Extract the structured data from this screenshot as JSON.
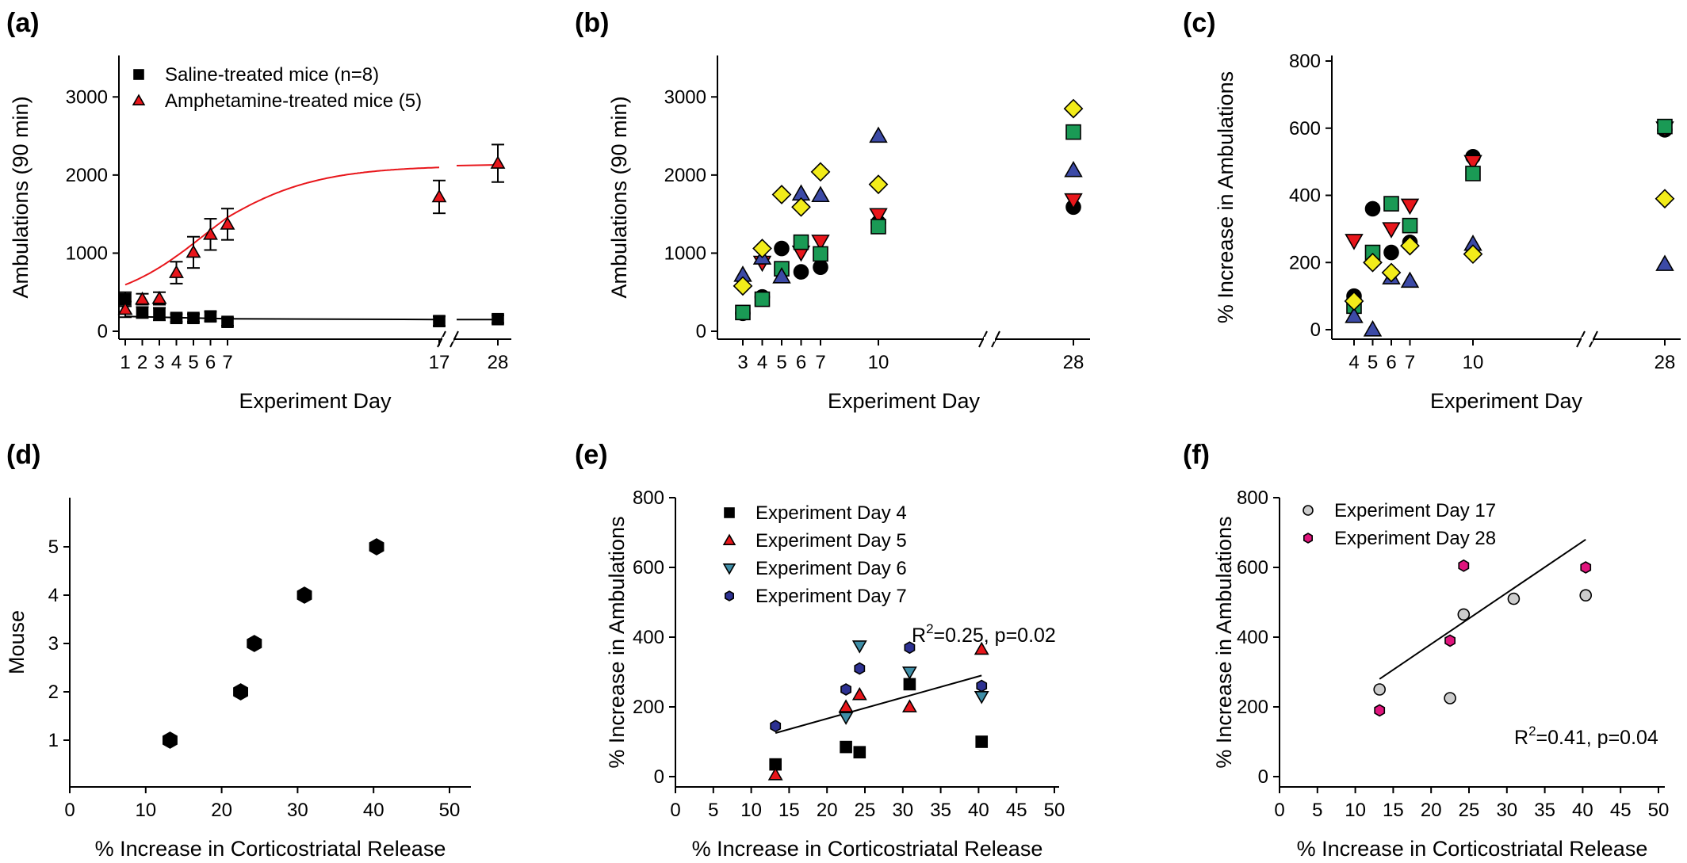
{
  "colors": {
    "black": "#000000",
    "red": "#e8161b",
    "teal": "#3e8da6",
    "navy": "#2d3192",
    "yellow": "#f2ec1a",
    "green": "#1a9a55",
    "blue_triangle": "#3c4aa6",
    "pink": "#e0157d",
    "gray": "#cccccc"
  },
  "chart_data": [
    {
      "id": "a",
      "panel_label": "(a)",
      "type": "line",
      "xlabel": "Experiment Day",
      "ylabel": "Ambulations (90 min)",
      "yticks": [
        0,
        1000,
        2000,
        3000
      ],
      "ylim": [
        0,
        3500
      ],
      "xticks": [
        "1",
        "2",
        "3",
        "4",
        "5",
        "6",
        "7",
        "17",
        "28"
      ],
      "axis_break": "between 17 and 28",
      "legend_position": "top-left",
      "series": [
        {
          "name": "Saline-treated mice (n=8)",
          "marker": "square",
          "color": "#000000",
          "x": [
            1,
            2,
            3,
            4,
            5,
            6,
            7,
            17,
            28
          ],
          "y": [
            410,
            240,
            220,
            170,
            170,
            190,
            120,
            130,
            155
          ],
          "err": [
            90,
            70,
            80,
            50,
            50,
            60,
            50,
            60,
            50
          ],
          "fit": {
            "type": "flat",
            "y": 150
          }
        },
        {
          "name": "Amphetamine-treated mice (5)",
          "marker": "triangle",
          "color": "#e8161b",
          "x": [
            1,
            2,
            3,
            4,
            5,
            6,
            7,
            17,
            28
          ],
          "y": [
            280,
            410,
            420,
            750,
            1010,
            1240,
            1370,
            1720,
            2150
          ],
          "err": [
            100,
            70,
            80,
            140,
            200,
            200,
            200,
            210,
            240
          ],
          "fit": {
            "type": "sigmoid",
            "base": 330,
            "top": 2120,
            "half_day": 5.6,
            "slope": 0.38
          }
        }
      ]
    },
    {
      "id": "b",
      "panel_label": "(b)",
      "type": "scatter",
      "xlabel": "Experiment Day",
      "ylabel": "Ambulations (90 min)",
      "yticks": [
        0,
        1000,
        2000,
        3000
      ],
      "ylim": [
        0,
        3500
      ],
      "xticks": [
        "3",
        "4",
        "5",
        "6",
        "7",
        "10",
        "28"
      ],
      "axis_break": "between 10 and 28",
      "series": [
        {
          "marker": "circle",
          "color": "#000000",
          "x": [
            3,
            4,
            5,
            6,
            7,
            10,
            28
          ],
          "y": [
            230,
            440,
            1060,
            760,
            820,
            1390,
            1590
          ]
        },
        {
          "marker": "triangle-down",
          "color": "#e8161b",
          "x": [
            4,
            6,
            7,
            10,
            28
          ],
          "y": [
            880,
            1010,
            1150,
            1490,
            1680
          ]
        },
        {
          "marker": "square",
          "color": "#1a9a55",
          "x": [
            3,
            4,
            5,
            6,
            7,
            10,
            28
          ],
          "y": [
            240,
            410,
            800,
            1140,
            990,
            1340,
            2550
          ]
        },
        {
          "marker": "triangle",
          "color": "#3c4aa6",
          "x": [
            3,
            4,
            5,
            6,
            7,
            10,
            28
          ],
          "y": [
            720,
            940,
            700,
            1760,
            1740,
            2500,
            2060
          ]
        },
        {
          "marker": "diamond",
          "color": "#f2ec1a",
          "x": [
            3,
            4,
            5,
            6,
            7,
            10,
            28
          ],
          "y": [
            580,
            1060,
            1750,
            1590,
            2040,
            1880,
            2850
          ]
        }
      ]
    },
    {
      "id": "c",
      "panel_label": "(c)",
      "type": "scatter",
      "xlabel": "Experiment Day",
      "ylabel": "% Increase in Ambulations",
      "yticks": [
        0,
        200,
        400,
        600,
        800
      ],
      "ylim": [
        0,
        800
      ],
      "xticks": [
        "4",
        "5",
        "6",
        "7",
        "10",
        "28"
      ],
      "axis_break": "between 10 and 28",
      "series": [
        {
          "marker": "circle",
          "color": "#000000",
          "x": [
            4,
            5,
            6,
            7,
            10,
            28
          ],
          "y": [
            100,
            360,
            230,
            260,
            515,
            595
          ]
        },
        {
          "marker": "triangle-down",
          "color": "#e8161b",
          "x": [
            4,
            6,
            7,
            10,
            28
          ],
          "y": [
            265,
            300,
            370,
            500,
            600
          ]
        },
        {
          "marker": "square",
          "color": "#1a9a55",
          "x": [
            4,
            5,
            6,
            7,
            10,
            28
          ],
          "y": [
            70,
            230,
            375,
            310,
            465,
            605
          ]
        },
        {
          "marker": "triangle",
          "color": "#3c4aa6",
          "x": [
            4,
            5,
            6,
            7,
            10,
            28
          ],
          "y": [
            40,
            0,
            155,
            145,
            255,
            195
          ]
        },
        {
          "marker": "diamond",
          "color": "#f2ec1a",
          "x": [
            4,
            5,
            6,
            7,
            10,
            28
          ],
          "y": [
            85,
            200,
            170,
            250,
            225,
            390
          ]
        }
      ]
    },
    {
      "id": "d",
      "panel_label": "(d)",
      "type": "scatter",
      "xlabel": "% Increase in Corticostriatal Release",
      "ylabel": "Mouse",
      "xticks": [
        0,
        10,
        20,
        30,
        40,
        50
      ],
      "yticks": [
        1,
        2,
        3,
        4,
        5
      ],
      "xlim": [
        0,
        52
      ],
      "ylim": [
        0,
        5.9
      ],
      "series": [
        {
          "marker": "hexagon",
          "color": "#000000",
          "x": [
            13.2,
            22.5,
            24.3,
            30.9,
            40.4
          ],
          "y": [
            1,
            2,
            3,
            4,
            5
          ]
        }
      ]
    },
    {
      "id": "e",
      "panel_label": "(e)",
      "type": "scatter",
      "xlabel": "% Increase in Corticostriatal Release",
      "ylabel": "% Increase in Ambulations",
      "xticks": [
        0,
        5,
        10,
        15,
        20,
        25,
        30,
        35,
        40,
        45,
        50
      ],
      "yticks": [
        0,
        200,
        400,
        600,
        800
      ],
      "xlim": [
        0,
        52
      ],
      "ylim": [
        0,
        800
      ],
      "legend_position": "top-left",
      "annotation": "R²=0.25, p=0.02",
      "annotation_parts": {
        "base": "R",
        "sup": "2",
        "rest": "=0.25, p=0.02"
      },
      "fit_line": {
        "x": [
          13.2,
          40.4
        ],
        "y": [
          125,
          290
        ]
      },
      "series": [
        {
          "name": "Experiment Day 4",
          "marker": "square",
          "color": "#000000",
          "x": [
            13.2,
            22.5,
            24.3,
            30.9,
            40.4
          ],
          "y": [
            35,
            85,
            70,
            265,
            100
          ]
        },
        {
          "name": "Experiment Day 5",
          "marker": "triangle",
          "color": "#e8161b",
          "x": [
            13.2,
            22.5,
            24.3,
            30.9,
            40.4
          ],
          "y": [
            5,
            200,
            235,
            200,
            365
          ]
        },
        {
          "name": "Experiment Day 6",
          "marker": "triangle-down",
          "color": "#3e8da6",
          "x": [
            22.5,
            24.3,
            30.9,
            40.4
          ],
          "y": [
            170,
            375,
            300,
            230
          ]
        },
        {
          "name": "Experiment Day 7",
          "marker": "hexagon",
          "color": "#2d3192",
          "x": [
            13.2,
            22.5,
            24.3,
            30.9,
            40.4
          ],
          "y": [
            145,
            250,
            310,
            370,
            260
          ]
        }
      ]
    },
    {
      "id": "f",
      "panel_label": "(f)",
      "type": "scatter",
      "xlabel": "% Increase in Corticostriatal Release",
      "ylabel": "% Increase in Ambulations",
      "xticks": [
        0,
        5,
        10,
        15,
        20,
        25,
        30,
        35,
        40,
        45,
        50
      ],
      "yticks": [
        0,
        200,
        400,
        600,
        800
      ],
      "xlim": [
        0,
        52
      ],
      "ylim": [
        0,
        800
      ],
      "legend_position": "top-left",
      "annotation": "R²=0.41, p=0.04",
      "annotation_parts": {
        "base": "R",
        "sup": "2",
        "rest": "=0.41, p=0.04"
      },
      "fit_line": {
        "x": [
          13.2,
          40.4
        ],
        "y": [
          280,
          680
        ]
      },
      "series": [
        {
          "name": "Experiment Day 17",
          "marker": "circle",
          "color": "#cccccc",
          "x": [
            13.2,
            22.5,
            24.3,
            30.9,
            40.4
          ],
          "y": [
            250,
            225,
            465,
            510,
            520
          ]
        },
        {
          "name": "Experiment Day 28",
          "marker": "hexagon",
          "color": "#e0157d",
          "x": [
            13.2,
            22.5,
            24.3,
            40.4
          ],
          "y": [
            190,
            390,
            605,
            600
          ]
        }
      ]
    }
  ]
}
